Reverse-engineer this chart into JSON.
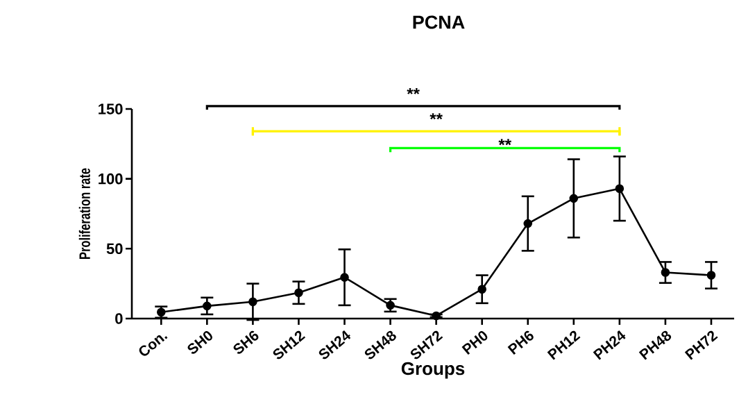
{
  "chart_data": {
    "type": "line",
    "title": "PCNA",
    "xlabel": "Groups",
    "ylabel": "Proliferation rate",
    "categories": [
      "Con.",
      "SH0",
      "SH6",
      "SH12",
      "SH24",
      "SH48",
      "SH72",
      "PH0",
      "PH6",
      "PH12",
      "PH24",
      "PH48",
      "PH72"
    ],
    "values": [
      4.6,
      9,
      12,
      18.5,
      29.5,
      9.5,
      2,
      21,
      68,
      86,
      93,
      33,
      31
    ],
    "errors": [
      4,
      6,
      13,
      8,
      20,
      4.5,
      1,
      10,
      19.5,
      28,
      23,
      7.5,
      9.5
    ],
    "color": "#000000",
    "ylim": [
      0,
      150
    ],
    "yticks": [
      0,
      50,
      100,
      150
    ],
    "annotations": [
      "**",
      "**",
      "**"
    ],
    "grid": false,
    "marker": "circle",
    "line_style": "solid"
  }
}
